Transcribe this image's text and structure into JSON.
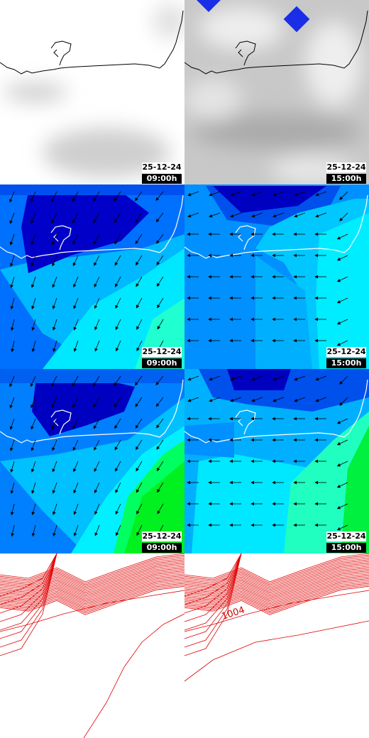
{
  "panels": [
    {
      "date": "25-12-24",
      "time": "09:00h"
    },
    {
      "date": "25-12-24",
      "time": "15:00h"
    },
    {
      "date": "25-12-24",
      "time": "09:00h"
    },
    {
      "date": "25-12-24",
      "time": "15:00h"
    },
    {
      "date": "25-12-24",
      "time": "09:00h"
    },
    {
      "date": "25-12-24",
      "time": "15:00h"
    }
  ],
  "contour_label": "1004"
}
